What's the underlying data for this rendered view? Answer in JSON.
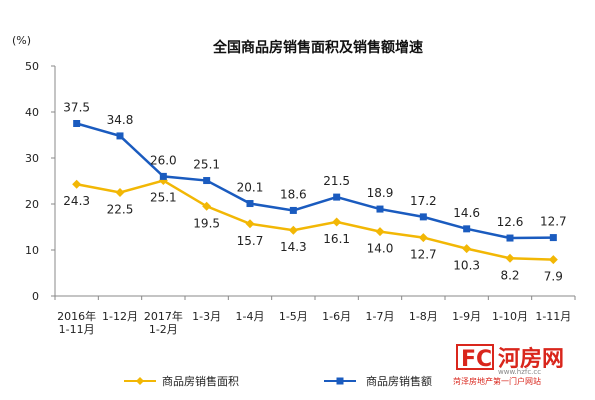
{
  "chart_data": {
    "type": "line",
    "title": "全国商品房销售面积及销售额增速",
    "ylabel": "(%)",
    "ylim": [
      0,
      50
    ],
    "yticks": [
      0,
      10,
      20,
      30,
      40,
      50
    ],
    "grid": false,
    "legend_position": "bottom",
    "categories": [
      [
        "2016年",
        "1-11月"
      ],
      [
        "1-12月"
      ],
      [
        "2017年",
        "1-2月"
      ],
      [
        "1-3月"
      ],
      [
        "1-4月"
      ],
      [
        "1-5月"
      ],
      [
        "1-6月"
      ],
      [
        "1-7月"
      ],
      [
        "1-8月"
      ],
      [
        "1-9月"
      ],
      [
        "1-10月"
      ],
      [
        "1-11月"
      ]
    ],
    "series": [
      {
        "name": "商品房销售面积",
        "color": "#f2b705",
        "marker": "diamond",
        "values": [
          24.3,
          22.5,
          25.1,
          19.5,
          15.7,
          14.3,
          16.1,
          14.0,
          12.7,
          10.3,
          8.2,
          7.9
        ],
        "labels": [
          "24.3",
          "22.5",
          "25.1",
          "19.5",
          "15.7",
          "14.3",
          "16.1",
          "14.0",
          "12.7",
          "10.3",
          "8.2",
          "7.9"
        ]
      },
      {
        "name": "商品房销售额",
        "color": "#1a5bbf",
        "marker": "square",
        "values": [
          37.5,
          34.8,
          26.0,
          25.1,
          20.1,
          18.6,
          21.5,
          18.9,
          17.2,
          14.6,
          12.6,
          12.7
        ],
        "labels": [
          "37.5",
          "34.8",
          "26.0",
          "25.1",
          "20.1",
          "18.6",
          "21.5",
          "18.9",
          "17.2",
          "14.6",
          "12.6",
          "12.7"
        ]
      }
    ]
  },
  "watermark": {
    "logo_text": "FC",
    "name": "河房网",
    "url": "www.hzfc.cc",
    "slogan": "菏泽房地产第一门户网站",
    "color": "#d9261c"
  }
}
